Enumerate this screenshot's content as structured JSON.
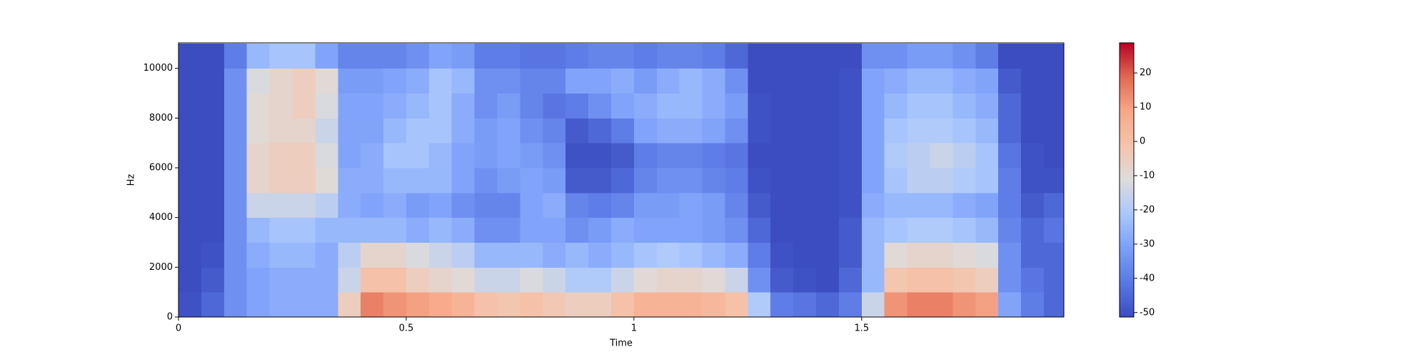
{
  "chart_data": {
    "type": "spectrogram",
    "xlabel": "Time",
    "ylabel": "Hz",
    "xlim": [
      0,
      1.944
    ],
    "ylim": [
      0,
      11025
    ],
    "xticks": [
      0,
      0.5,
      1,
      1.5
    ],
    "yticks": [
      0,
      2000,
      4000,
      6000,
      8000,
      10000
    ],
    "xbins": [
      0,
      0.05,
      0.1,
      0.15,
      0.2,
      0.25,
      0.3,
      0.35,
      0.4,
      0.45,
      0.5,
      0.55,
      0.6,
      0.65,
      0.7,
      0.75,
      0.8,
      0.85,
      0.9,
      0.95,
      1,
      1.05,
      1.1,
      1.15,
      1.2,
      1.25,
      1.3,
      1.35,
      1.4,
      1.45,
      1.5,
      1.55,
      1.6,
      1.65,
      1.7,
      1.75,
      1.8,
      1.85,
      1.9,
      1.95
    ],
    "ybins": [
      0,
      1000,
      2000,
      3000,
      4000,
      5000,
      6000,
      7000,
      8000,
      9000,
      10000,
      11000
    ],
    "colormap": "coolwarm",
    "clim": [
      -51.3,
      28.8
    ],
    "cticks": [
      -50,
      -40,
      -30,
      -20,
      -10,
      0,
      10,
      20
    ],
    "z": [
      [
        -50,
        -45,
        -35,
        -30,
        -28,
        -28,
        -28,
        -5,
        15,
        12,
        10,
        8,
        5,
        0,
        -2,
        0,
        -3,
        -5,
        -5,
        0,
        5,
        5,
        5,
        3,
        0,
        -20,
        -40,
        -42,
        -45,
        -40,
        -15,
        12,
        15,
        15,
        12,
        10,
        -30,
        -40,
        -45
      ],
      [
        -51,
        -48,
        -35,
        -30,
        -28,
        -28,
        -28,
        -15,
        0,
        0,
        -5,
        -8,
        -10,
        -15,
        -15,
        -12,
        -15,
        -20,
        -20,
        -15,
        -10,
        -8,
        -8,
        -10,
        -15,
        -35,
        -48,
        -50,
        -51,
        -45,
        -25,
        -2,
        0,
        0,
        -2,
        -5,
        -35,
        -42,
        -45
      ],
      [
        -51,
        -50,
        -35,
        -28,
        -25,
        -25,
        -28,
        -18,
        -8,
        -8,
        -12,
        -15,
        -18,
        -25,
        -25,
        -25,
        -28,
        -25,
        -28,
        -25,
        -22,
        -20,
        -22,
        -25,
        -28,
        -40,
        -50,
        -51,
        -51,
        -48,
        -25,
        -10,
        -8,
        -8,
        -10,
        -12,
        -35,
        -45,
        -45
      ],
      [
        -51,
        -51,
        -35,
        -25,
        -22,
        -22,
        -25,
        -25,
        -25,
        -25,
        -28,
        -25,
        -28,
        -35,
        -35,
        -30,
        -30,
        -35,
        -32,
        -28,
        -30,
        -30,
        -30,
        -32,
        -35,
        -45,
        -51,
        -51,
        -51,
        -48,
        -25,
        -22,
        -20,
        -20,
        -22,
        -25,
        -38,
        -45,
        -42
      ],
      [
        -51,
        -51,
        -35,
        -15,
        -15,
        -15,
        -18,
        -28,
        -30,
        -28,
        -32,
        -30,
        -35,
        -38,
        -38,
        -30,
        -28,
        -38,
        -40,
        -38,
        -32,
        -32,
        -30,
        -32,
        -38,
        -48,
        -51,
        -51,
        -51,
        -50,
        -28,
        -25,
        -25,
        -25,
        -28,
        -30,
        -40,
        -48,
        -45
      ],
      [
        -51,
        -51,
        -35,
        -8,
        -5,
        -5,
        -10,
        -28,
        -28,
        -25,
        -25,
        -25,
        -30,
        -35,
        -32,
        -30,
        -32,
        -48,
        -48,
        -45,
        -38,
        -35,
        -35,
        -38,
        -40,
        -50,
        -51,
        -51,
        -51,
        -50,
        -30,
        -22,
        -18,
        -18,
        -20,
        -22,
        -40,
        -50,
        -50
      ],
      [
        -51,
        -51,
        -35,
        -8,
        -5,
        -5,
        -12,
        -30,
        -28,
        -22,
        -22,
        -25,
        -30,
        -32,
        -30,
        -32,
        -35,
        -50,
        -50,
        -48,
        -40,
        -38,
        -38,
        -40,
        -42,
        -51,
        -51,
        -51,
        -51,
        -50,
        -30,
        -20,
        -18,
        -15,
        -18,
        -22,
        -42,
        -50,
        -51
      ],
      [
        -51,
        -51,
        -35,
        -10,
        -8,
        -8,
        -15,
        -30,
        -30,
        -25,
        -22,
        -22,
        -28,
        -32,
        -30,
        -35,
        -38,
        -48,
        -45,
        -40,
        -30,
        -28,
        -28,
        -30,
        -35,
        -50,
        -51,
        -51,
        -51,
        -50,
        -30,
        -22,
        -20,
        -20,
        -22,
        -25,
        -45,
        -51,
        -51
      ],
      [
        -51,
        -51,
        -35,
        -10,
        -8,
        -5,
        -12,
        -30,
        -30,
        -28,
        -25,
        -22,
        -28,
        -35,
        -32,
        -38,
        -42,
        -40,
        -35,
        -30,
        -28,
        -25,
        -25,
        -28,
        -32,
        -50,
        -51,
        -51,
        -51,
        -50,
        -30,
        -25,
        -22,
        -22,
        -25,
        -28,
        -45,
        -51,
        -51
      ],
      [
        -51,
        -51,
        -35,
        -12,
        -8,
        -5,
        -10,
        -32,
        -32,
        -30,
        -28,
        -22,
        -25,
        -35,
        -35,
        -38,
        -38,
        -30,
        -30,
        -28,
        -32,
        -28,
        -25,
        -28,
        -35,
        -51,
        -51,
        -51,
        -51,
        -50,
        -30,
        -28,
        -25,
        -25,
        -28,
        -30,
        -48,
        -51,
        -51
      ],
      [
        -51,
        -51,
        -40,
        -25,
        -22,
        -22,
        -30,
        -38,
        -38,
        -38,
        -35,
        -30,
        -32,
        -40,
        -40,
        -42,
        -42,
        -40,
        -38,
        -38,
        -40,
        -38,
        -38,
        -40,
        -45,
        -51,
        -51,
        -51,
        -51,
        -51,
        -35,
        -35,
        -32,
        -32,
        -35,
        -40,
        -51,
        -51,
        -51
      ]
    ]
  }
}
